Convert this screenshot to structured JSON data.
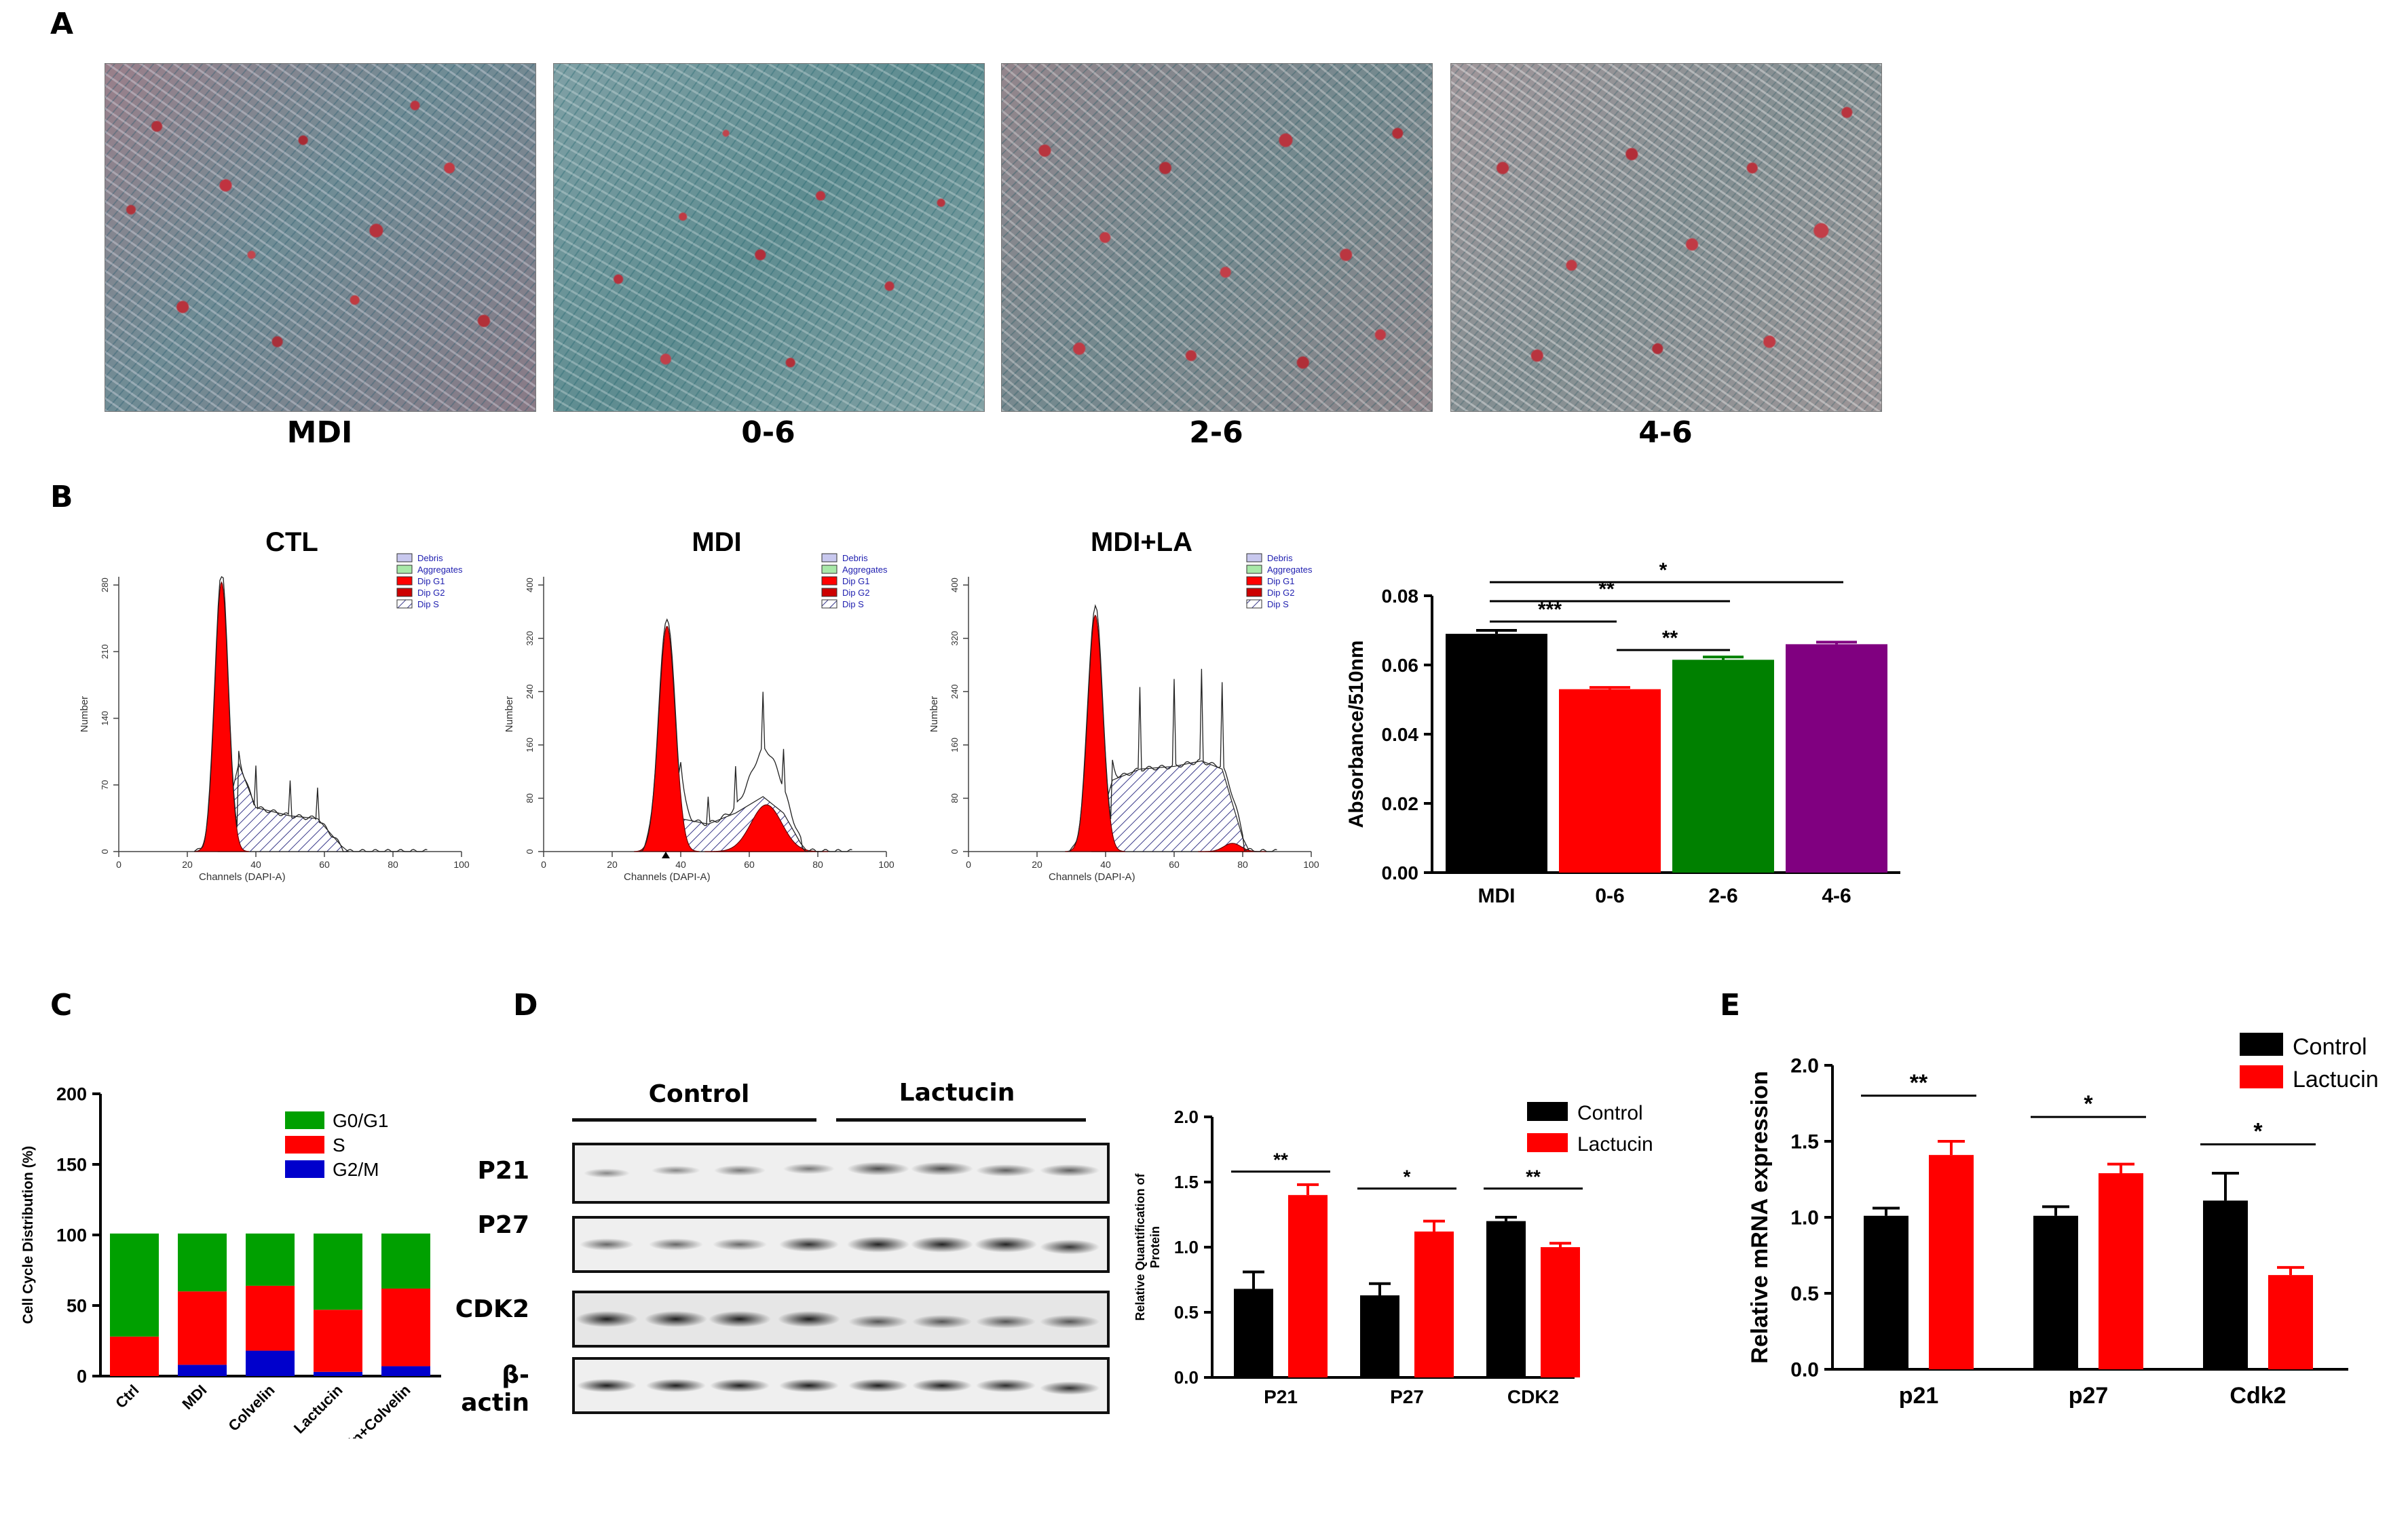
{
  "panels": {
    "a": "A",
    "b": "B",
    "c": "C",
    "d": "D",
    "e": "E"
  },
  "panel_a": {
    "labels": [
      "MDI",
      "0-6",
      "2-6",
      "4-6"
    ]
  },
  "flow": {
    "legend": [
      "Debris",
      "Aggregates",
      "Dip G1",
      "Dip G2",
      "Dip S"
    ],
    "xlabel": "Channels (DAPI-A)",
    "ylabel": "Number",
    "xticks": [
      "0",
      "20",
      "40",
      "60",
      "80",
      "100"
    ],
    "plots": [
      {
        "title": "CTL",
        "yticks": [
          "0",
          "70",
          "140",
          "210",
          "280"
        ]
      },
      {
        "title": "MDI",
        "yticks": [
          "0",
          "80",
          "160",
          "240",
          "320",
          "400"
        ]
      },
      {
        "title": "MDI+LA",
        "yticks": [
          "0",
          "80",
          "160",
          "240",
          "320",
          "400"
        ]
      }
    ]
  },
  "chart_data": [
    {
      "type": "bar",
      "panel": "B",
      "categories": [
        "MDI",
        "0-6",
        "2-6",
        "4-6"
      ],
      "values": [
        0.069,
        0.053,
        0.0615,
        0.066
      ],
      "errors": [
        0.001,
        0.0005,
        0.0008,
        0.0006
      ],
      "colors": [
        "#000000",
        "#ff0000",
        "#008000",
        "#800080"
      ],
      "ylabel": "Absorbance/510nm",
      "ylim": [
        0,
        0.08
      ],
      "yticks": [
        "0.00",
        "0.02",
        "0.04",
        "0.06",
        "0.08"
      ],
      "significance": [
        {
          "label": "*",
          "from": 0,
          "to": 3
        },
        {
          "label": "**",
          "from": 0,
          "to": 2
        },
        {
          "label": "***",
          "from": 0,
          "to": 1
        },
        {
          "label": "**",
          "from": 1,
          "to": 2
        }
      ]
    },
    {
      "type": "bar",
      "panel": "C",
      "stacked": true,
      "categories": [
        "Ctrl",
        "MDI",
        "Colvelin",
        "Lactucin",
        "Lactucin+Colvelin"
      ],
      "series": [
        {
          "name": "G2/M",
          "color": "#0000cc",
          "values": [
            0,
            8,
            18,
            3,
            7
          ]
        },
        {
          "name": "S",
          "color": "#ff0000",
          "values": [
            28,
            52,
            46,
            44,
            55
          ]
        },
        {
          "name": "G0/G1",
          "color": "#00a000",
          "values": [
            73,
            41,
            37,
            54,
            39
          ]
        }
      ],
      "legend_order": [
        "G0/G1",
        "S",
        "G2/M"
      ],
      "ylabel": "Cell Cycle Distribution (%)",
      "ylim": [
        0,
        200
      ],
      "yticks": [
        "0",
        "50",
        "100",
        "150",
        "200"
      ]
    },
    {
      "type": "bar",
      "panel": "D",
      "categories": [
        "P21",
        "P27",
        "CDK2"
      ],
      "series": [
        {
          "name": "Control",
          "color": "#000000",
          "values": [
            0.68,
            0.63,
            1.2
          ],
          "errors": [
            0.13,
            0.09,
            0.03
          ]
        },
        {
          "name": "Lactucin",
          "color": "#ff0000",
          "values": [
            1.4,
            1.12,
            1.0
          ],
          "errors": [
            0.08,
            0.08,
            0.03
          ]
        }
      ],
      "significance": [
        "**",
        "*",
        "**"
      ],
      "ylabel": "Relative Quantification of Protein",
      "ylim": [
        0,
        2.0
      ],
      "yticks": [
        "0.0",
        "0.5",
        "1.0",
        "1.5",
        "2.0"
      ]
    },
    {
      "type": "bar",
      "panel": "E",
      "categories": [
        "p21",
        "p27",
        "Cdk2"
      ],
      "series": [
        {
          "name": "Control",
          "color": "#000000",
          "values": [
            1.01,
            1.01,
            1.11
          ],
          "errors": [
            0.05,
            0.06,
            0.18
          ]
        },
        {
          "name": "Lactucin",
          "color": "#ff0000",
          "values": [
            1.41,
            1.29,
            0.62
          ],
          "errors": [
            0.09,
            0.06,
            0.05
          ]
        }
      ],
      "significance": [
        "**",
        "*",
        "*"
      ],
      "ylabel": "Relative mRNA expression",
      "ylim": [
        0,
        2.0
      ],
      "yticks": [
        "0.0",
        "0.5",
        "1.0",
        "1.5",
        "2.0"
      ]
    }
  ],
  "blot": {
    "groups": [
      "Control",
      "Lactucin"
    ],
    "rows": [
      "P21",
      "P27",
      "CDK2",
      "β-actin"
    ]
  }
}
